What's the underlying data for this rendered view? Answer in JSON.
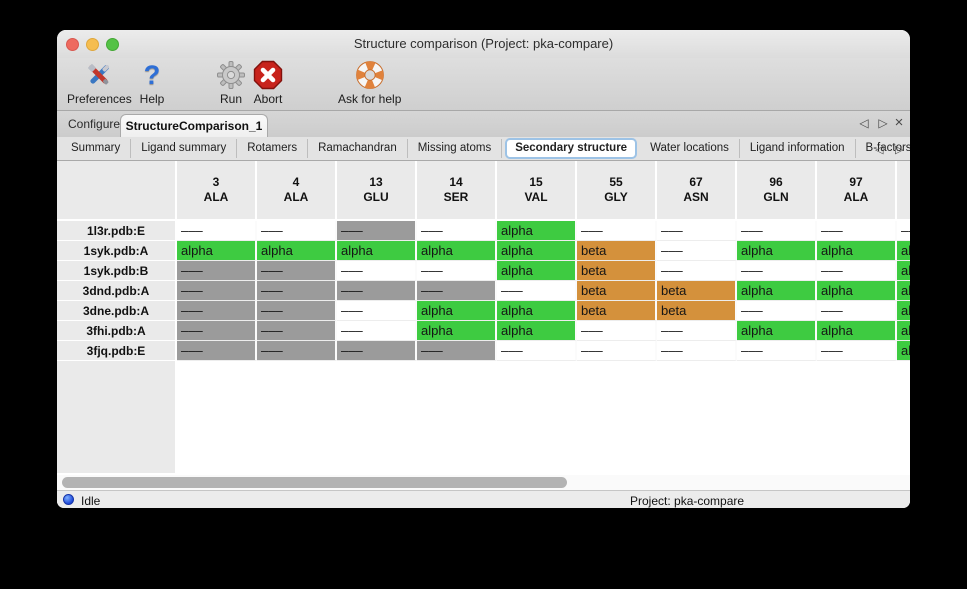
{
  "window": {
    "title": "Structure comparison (Project: pka-compare)"
  },
  "toolbar": {
    "buttons": [
      {
        "label": "Preferences",
        "icon": "tools-icon"
      },
      {
        "label": "Help",
        "icon": "question-icon"
      },
      {
        "label": "Run",
        "icon": "gear-icon"
      },
      {
        "label": "Abort",
        "icon": "stop-icon"
      },
      {
        "label": "Ask for help",
        "icon": "lifebuoy-icon"
      }
    ]
  },
  "tabs": {
    "items": [
      {
        "label": "Configure",
        "selected": false
      },
      {
        "label": "StructureComparison_1",
        "selected": true
      }
    ],
    "prev": "◁",
    "next": "▷",
    "close": "×"
  },
  "subtabs": {
    "items": [
      {
        "label": "Summary",
        "selected": false
      },
      {
        "label": "Ligand summary",
        "selected": false
      },
      {
        "label": "Rotamers",
        "selected": false
      },
      {
        "label": "Ramachandran",
        "selected": false
      },
      {
        "label": "Missing atoms",
        "selected": false
      },
      {
        "label": "Secondary structure",
        "selected": true
      },
      {
        "label": "Water locations",
        "selected": false
      },
      {
        "label": "Ligand information",
        "selected": false
      },
      {
        "label": "B-factors",
        "selected": false
      }
    ],
    "prev": "◁",
    "next": "▷"
  },
  "colors": {
    "alpha_green": "#3ecb41",
    "beta_orange": "#d4913c",
    "missing_gray": "#9b9b9b",
    "blank_white": "#ffffff"
  },
  "table": {
    "columns": [
      {
        "num": "3",
        "res": "ALA"
      },
      {
        "num": "4",
        "res": "ALA"
      },
      {
        "num": "13",
        "res": "GLU"
      },
      {
        "num": "14",
        "res": "SER"
      },
      {
        "num": "15",
        "res": "VAL"
      },
      {
        "num": "55",
        "res": "GLY"
      },
      {
        "num": "67",
        "res": "ASN"
      },
      {
        "num": "96",
        "res": "GLN"
      },
      {
        "num": "97",
        "res": "ALA"
      },
      {
        "num": "",
        "res": ""
      }
    ],
    "rows": [
      {
        "label": "1l3r.pdb:E",
        "cells": [
          {
            "text": "–––",
            "type": "blank"
          },
          {
            "text": "–––",
            "type": "blank"
          },
          {
            "text": "–––",
            "type": "gray"
          },
          {
            "text": "–––",
            "type": "blank"
          },
          {
            "text": "alpha",
            "type": "alpha"
          },
          {
            "text": "–––",
            "type": "blank"
          },
          {
            "text": "–––",
            "type": "blank"
          },
          {
            "text": "–––",
            "type": "blank"
          },
          {
            "text": "–––",
            "type": "blank"
          },
          {
            "text": "–––",
            "type": "blank"
          }
        ]
      },
      {
        "label": "1syk.pdb:A",
        "cells": [
          {
            "text": "alpha",
            "type": "alpha"
          },
          {
            "text": "alpha",
            "type": "alpha"
          },
          {
            "text": "alpha",
            "type": "alpha"
          },
          {
            "text": "alpha",
            "type": "alpha"
          },
          {
            "text": "alpha",
            "type": "alpha"
          },
          {
            "text": "beta",
            "type": "beta"
          },
          {
            "text": "–––",
            "type": "blank"
          },
          {
            "text": "alpha",
            "type": "alpha"
          },
          {
            "text": "alpha",
            "type": "alpha"
          },
          {
            "text": "alpha",
            "type": "alpha"
          }
        ]
      },
      {
        "label": "1syk.pdb:B",
        "cells": [
          {
            "text": "–––",
            "type": "gray"
          },
          {
            "text": "–––",
            "type": "gray"
          },
          {
            "text": "–––",
            "type": "blank"
          },
          {
            "text": "–––",
            "type": "blank"
          },
          {
            "text": "alpha",
            "type": "alpha"
          },
          {
            "text": "beta",
            "type": "beta"
          },
          {
            "text": "–––",
            "type": "blank"
          },
          {
            "text": "–––",
            "type": "blank"
          },
          {
            "text": "–––",
            "type": "blank"
          },
          {
            "text": "alpha",
            "type": "alpha"
          }
        ]
      },
      {
        "label": "3dnd.pdb:A",
        "cells": [
          {
            "text": "–––",
            "type": "gray"
          },
          {
            "text": "–––",
            "type": "gray"
          },
          {
            "text": "–––",
            "type": "gray"
          },
          {
            "text": "–––",
            "type": "gray"
          },
          {
            "text": "–––",
            "type": "blank"
          },
          {
            "text": "beta",
            "type": "beta"
          },
          {
            "text": "beta",
            "type": "beta"
          },
          {
            "text": "alpha",
            "type": "alpha"
          },
          {
            "text": "alpha",
            "type": "alpha"
          },
          {
            "text": "alpha",
            "type": "alpha"
          }
        ]
      },
      {
        "label": "3dne.pdb:A",
        "cells": [
          {
            "text": "–––",
            "type": "gray"
          },
          {
            "text": "–––",
            "type": "gray"
          },
          {
            "text": "–––",
            "type": "blank"
          },
          {
            "text": "alpha",
            "type": "alpha"
          },
          {
            "text": "alpha",
            "type": "alpha"
          },
          {
            "text": "beta",
            "type": "beta"
          },
          {
            "text": "beta",
            "type": "beta"
          },
          {
            "text": "–––",
            "type": "blank"
          },
          {
            "text": "–––",
            "type": "blank"
          },
          {
            "text": "alpha",
            "type": "alpha"
          }
        ]
      },
      {
        "label": "3fhi.pdb:A",
        "cells": [
          {
            "text": "–––",
            "type": "gray"
          },
          {
            "text": "–––",
            "type": "gray"
          },
          {
            "text": "–––",
            "type": "blank"
          },
          {
            "text": "alpha",
            "type": "alpha"
          },
          {
            "text": "alpha",
            "type": "alpha"
          },
          {
            "text": "–––",
            "type": "blank"
          },
          {
            "text": "–––",
            "type": "blank"
          },
          {
            "text": "alpha",
            "type": "alpha"
          },
          {
            "text": "alpha",
            "type": "alpha"
          },
          {
            "text": "alpha",
            "type": "alpha"
          }
        ]
      },
      {
        "label": "3fjq.pdb:E",
        "cells": [
          {
            "text": "–––",
            "type": "gray"
          },
          {
            "text": "–––",
            "type": "gray"
          },
          {
            "text": "–––",
            "type": "gray"
          },
          {
            "text": "–––",
            "type": "gray"
          },
          {
            "text": "–––",
            "type": "blank"
          },
          {
            "text": "–––",
            "type": "blank"
          },
          {
            "text": "–––",
            "type": "blank"
          },
          {
            "text": "–––",
            "type": "blank"
          },
          {
            "text": "–––",
            "type": "blank"
          },
          {
            "text": "alpha",
            "type": "alpha"
          }
        ]
      }
    ]
  },
  "statusbar": {
    "status": "Idle",
    "project": "Project: pka-compare"
  }
}
